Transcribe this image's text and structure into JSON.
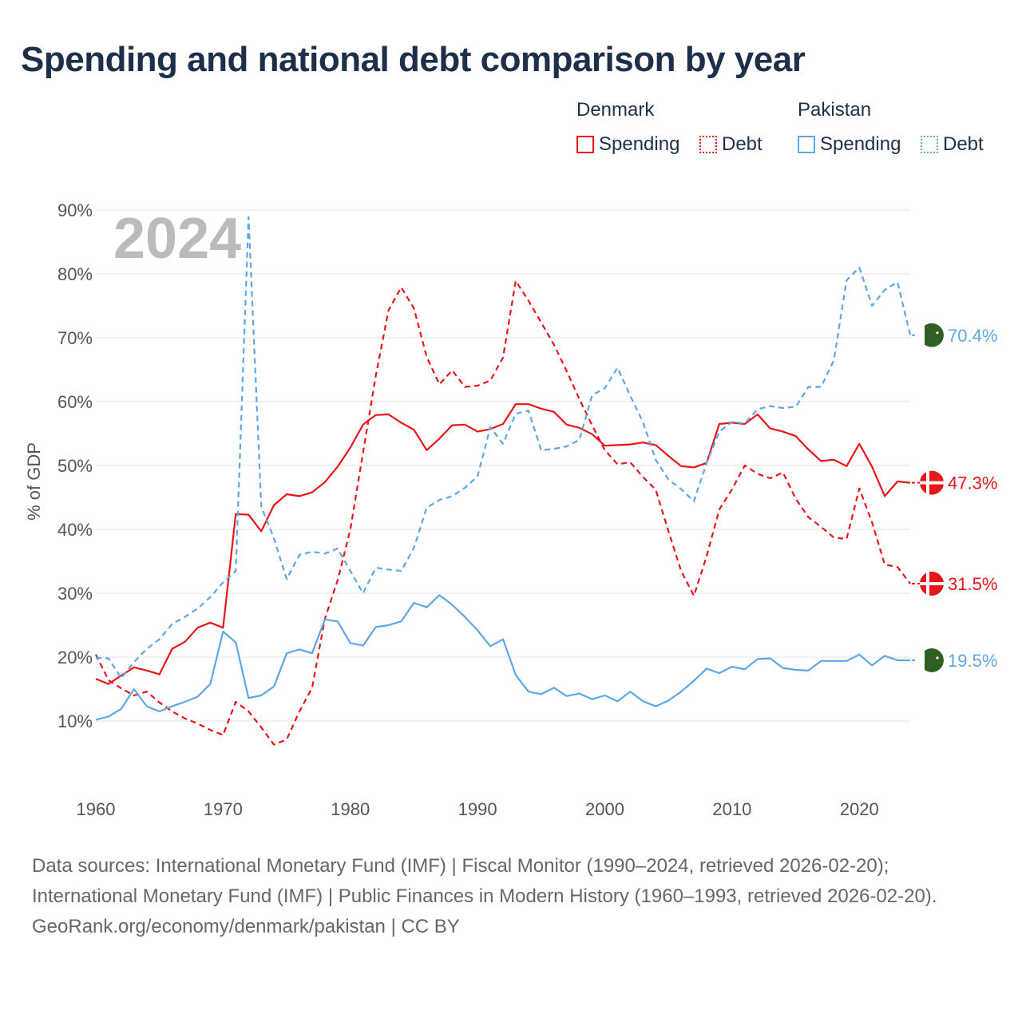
{
  "title": "Spending and national debt comparison by year",
  "legend": {
    "groups": [
      {
        "label": "Denmark",
        "items": [
          {
            "label": "Spending",
            "style": "solid",
            "color": "#e8151b"
          },
          {
            "label": "Debt",
            "style": "dotted",
            "color": "#e8151b"
          }
        ]
      },
      {
        "label": "Pakistan",
        "items": [
          {
            "label": "Spending",
            "style": "solid",
            "color": "#5ea6e6"
          },
          {
            "label": "Debt",
            "style": "dotted",
            "color": "#5ea6e6"
          }
        ]
      }
    ]
  },
  "year_watermark": "2024",
  "end_labels": [
    {
      "text": "70.4%",
      "value": 70.4,
      "country": "Pakistan",
      "color": "#5ea6e6",
      "flag": "pakistan-flag-icon"
    },
    {
      "text": "47.3%",
      "value": 47.3,
      "country": "Denmark",
      "color": "#e8151b",
      "flag": "denmark-flag-icon"
    },
    {
      "text": "31.5%",
      "value": 31.5,
      "country": "Denmark",
      "color": "#e8151b",
      "flag": "denmark-flag-icon"
    },
    {
      "text": "19.5%",
      "value": 19.5,
      "country": "Pakistan",
      "color": "#5ea6e6",
      "flag": "pakistan-flag-icon"
    }
  ],
  "footer": {
    "sources": "Data sources: International Monetary Fund (IMF) | Fiscal Monitor (1990–2024, retrieved 2026-02-20); International Monetary Fund (IMF) | Public Finances in Modern History (1960–1993, retrieved 2026-02-20).",
    "credit": "GeoRank.org/economy/denmark/pakistan | CC BY"
  },
  "chart_data": {
    "type": "line",
    "title": "Spending and national debt comparison by year",
    "xlabel": "",
    "ylabel": "% of GDP",
    "xlim": [
      1960,
      2024
    ],
    "ylim": [
      0,
      90
    ],
    "xticks": [
      1960,
      1970,
      1980,
      1990,
      2000,
      2010,
      2020
    ],
    "xtick_labels": [
      "1960",
      "1970",
      "1980",
      "1990",
      "2000",
      "2010",
      "2020"
    ],
    "yticks": [
      10,
      20,
      30,
      40,
      50,
      60,
      70,
      80,
      90
    ],
    "ytick_labels": [
      "10%",
      "20%",
      "30%",
      "40%",
      "50%",
      "60%",
      "70%",
      "80%",
      "90%"
    ],
    "grid": true,
    "series": [
      {
        "name": "Denmark Spending",
        "country": "Denmark",
        "metric": "Spending",
        "color": "#e8151b",
        "dash": false,
        "x": [
          1960,
          1961,
          1962,
          1963,
          1964,
          1965,
          1966,
          1967,
          1968,
          1969,
          1970,
          1971,
          1972,
          1973,
          1974,
          1975,
          1976,
          1977,
          1978,
          1979,
          1980,
          1981,
          1982,
          1983,
          1984,
          1985,
          1986,
          1987,
          1988,
          1989,
          1990,
          1991,
          1992,
          1993,
          1994,
          1995,
          1996,
          1997,
          1998,
          1999,
          2000,
          2001,
          2002,
          2003,
          2004,
          2005,
          2006,
          2007,
          2008,
          2009,
          2010,
          2011,
          2012,
          2013,
          2014,
          2015,
          2016,
          2017,
          2018,
          2019,
          2020,
          2021,
          2022,
          2023,
          2024
        ],
        "values": [
          16.6,
          15.8,
          17.1,
          18.4,
          17.9,
          17.3,
          21.3,
          22.4,
          24.6,
          25.4,
          24.6,
          42.4,
          42.3,
          39.7,
          43.8,
          45.5,
          45.2,
          45.8,
          47.4,
          49.8,
          52.8,
          56.4,
          57.9,
          58.0,
          56.7,
          55.6,
          52.4,
          54.2,
          56.3,
          56.4,
          55.3,
          55.7,
          56.5,
          59.6,
          59.6,
          58.9,
          58.4,
          56.4,
          55.9,
          54.9,
          53.1,
          53.2,
          53.3,
          53.6,
          53.2,
          51.5,
          49.9,
          49.7,
          50.4,
          56.5,
          56.7,
          56.5,
          58.0,
          55.8,
          55.3,
          54.6,
          52.5,
          50.7,
          50.9,
          49.9,
          53.4,
          49.8,
          45.2,
          47.5,
          47.3
        ]
      },
      {
        "name": "Denmark Debt",
        "country": "Denmark",
        "metric": "Debt",
        "color": "#e8151b",
        "dash": true,
        "x": [
          1960,
          1961,
          1962,
          1963,
          1964,
          1965,
          1966,
          1967,
          1968,
          1969,
          1970,
          1971,
          1972,
          1973,
          1974,
          1975,
          1976,
          1977,
          1978,
          1979,
          1980,
          1981,
          1982,
          1983,
          1984,
          1985,
          1986,
          1987,
          1988,
          1989,
          1990,
          1991,
          1992,
          1993,
          1994,
          1995,
          1996,
          1997,
          1998,
          1999,
          2000,
          2001,
          2002,
          2003,
          2004,
          2005,
          2006,
          2007,
          2008,
          2009,
          2010,
          2011,
          2012,
          2013,
          2014,
          2015,
          2016,
          2017,
          2018,
          2019,
          2020,
          2021,
          2022,
          2023,
          2024
        ],
        "values": [
          20.4,
          16.4,
          15.1,
          14.0,
          14.6,
          12.9,
          11.5,
          10.4,
          9.6,
          8.6,
          7.8,
          13.0,
          11.5,
          9.0,
          6.3,
          7.1,
          11.5,
          15.2,
          26.0,
          32.0,
          40.0,
          52.0,
          64.0,
          74.3,
          77.9,
          74.6,
          67.0,
          62.7,
          64.9,
          62.3,
          62.5,
          63.3,
          66.9,
          78.9,
          75.8,
          72.4,
          68.9,
          64.8,
          60.4,
          56.3,
          52.4,
          50.2,
          50.5,
          48.2,
          46.2,
          39.7,
          33.5,
          29.6,
          35.8,
          43.1,
          46.3,
          50.0,
          48.7,
          48.0,
          48.9,
          44.8,
          41.9,
          40.4,
          38.7,
          38.5,
          46.4,
          41.1,
          34.5,
          34.1,
          31.5
        ]
      },
      {
        "name": "Pakistan Spending",
        "country": "Pakistan",
        "metric": "Spending",
        "color": "#5ea6e6",
        "dash": false,
        "x": [
          1960,
          1961,
          1962,
          1963,
          1964,
          1965,
          1966,
          1967,
          1968,
          1969,
          1970,
          1971,
          1972,
          1973,
          1974,
          1975,
          1976,
          1977,
          1978,
          1979,
          1980,
          1981,
          1982,
          1983,
          1984,
          1985,
          1986,
          1987,
          1988,
          1989,
          1990,
          1991,
          1992,
          1993,
          1994,
          1995,
          1996,
          1997,
          1998,
          1999,
          2000,
          2001,
          2002,
          2003,
          2004,
          2005,
          2006,
          2007,
          2008,
          2009,
          2010,
          2011,
          2012,
          2013,
          2014,
          2015,
          2016,
          2017,
          2018,
          2019,
          2020,
          2021,
          2022,
          2023,
          2024
        ],
        "values": [
          10.2,
          10.7,
          11.9,
          15.0,
          12.3,
          11.5,
          12.3,
          13.0,
          13.8,
          15.8,
          24.0,
          22.3,
          13.6,
          14.0,
          15.4,
          20.6,
          21.2,
          20.6,
          25.9,
          25.6,
          22.2,
          21.8,
          24.7,
          25.0,
          25.6,
          28.5,
          27.8,
          29.7,
          28.2,
          26.3,
          24.2,
          21.7,
          22.8,
          17.2,
          14.6,
          14.2,
          15.2,
          13.9,
          14.3,
          13.4,
          14.0,
          13.1,
          14.6,
          13.1,
          12.3,
          13.2,
          14.6,
          16.3,
          18.2,
          17.5,
          18.5,
          18.1,
          19.7,
          19.8,
          18.3,
          18.0,
          17.9,
          19.4,
          19.4,
          19.4,
          20.4,
          18.7,
          20.2,
          19.5,
          19.5
        ]
      },
      {
        "name": "Pakistan Debt",
        "country": "Pakistan",
        "metric": "Debt",
        "color": "#5ea6e6",
        "dash": true,
        "x": [
          1960,
          1961,
          1962,
          1963,
          1964,
          1965,
          1966,
          1967,
          1968,
          1969,
          1970,
          1971,
          1972,
          1973,
          1974,
          1975,
          1976,
          1977,
          1978,
          1979,
          1980,
          1981,
          1982,
          1983,
          1984,
          1985,
          1986,
          1987,
          1988,
          1989,
          1990,
          1991,
          1992,
          1993,
          1994,
          1995,
          1996,
          1997,
          1998,
          1999,
          2000,
          2001,
          2002,
          2003,
          2004,
          2005,
          2006,
          2007,
          2008,
          2009,
          2010,
          2011,
          2012,
          2013,
          2014,
          2015,
          2016,
          2017,
          2018,
          2019,
          2020,
          2021,
          2022,
          2023,
          2024
        ],
        "values": [
          19.9,
          19.8,
          16.7,
          19.2,
          21.3,
          22.8,
          25.2,
          26.3,
          27.6,
          29.4,
          31.7,
          33.5,
          88.9,
          43.6,
          38.6,
          32.2,
          36.0,
          36.5,
          36.2,
          37.0,
          33.5,
          30.0,
          34.0,
          33.7,
          33.5,
          37.1,
          43.4,
          44.6,
          45.2,
          46.5,
          48.3,
          56.0,
          53.4,
          58.1,
          58.6,
          52.4,
          52.6,
          53.0,
          54.0,
          61.0,
          62.1,
          65.3,
          60.9,
          56.8,
          50.9,
          47.8,
          46.3,
          44.4,
          50.4,
          55.3,
          56.8,
          56.6,
          58.8,
          59.3,
          59.0,
          59.2,
          62.3,
          62.3,
          66.5,
          79.0,
          81.0,
          75.0,
          77.5,
          78.7,
          70.4
        ]
      }
    ]
  }
}
